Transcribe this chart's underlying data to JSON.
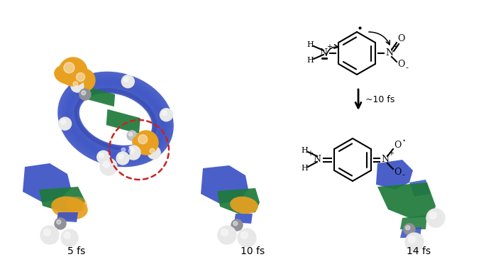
{
  "background_color": "#ffffff",
  "fig_width": 6.85,
  "fig_height": 3.93,
  "arrow_label": "~10 fs",
  "label_5fs": "5 fs",
  "label_10fs": "10 fs",
  "label_14fs": "14 fs",
  "colors": {
    "blue": "#3a52c4",
    "blue_dark": "#2a3a9a",
    "orange": "#e8a020",
    "orange_dark": "#c07010",
    "green": "#1e7a3a",
    "green_dark": "#155a28",
    "gray": "#909098",
    "gray_light": "#c0c0c8",
    "white_atom": "#e8e8e8",
    "white_atom_dark": "#b0b0b0",
    "red_dashed": "#cc2020"
  }
}
